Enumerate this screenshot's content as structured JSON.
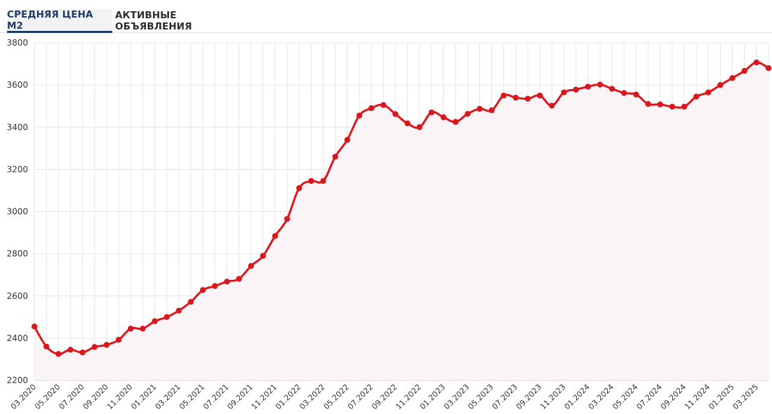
{
  "tabs": [
    {
      "label": "СРЕДНЯЯ ЦЕНА М2",
      "active": true
    },
    {
      "label": "АКТИВНЫЕ ОБЪЯВЛЕНИЯ",
      "active": false
    }
  ],
  "colors": {
    "line": "#d9181e",
    "area": "#fbf4f7",
    "grid": "#e6e6e6",
    "tab_active": "#1d3b66"
  },
  "chart_data": {
    "type": "line",
    "y_ticks": [
      2200,
      2400,
      2600,
      2800,
      3000,
      3200,
      3400,
      3600,
      3800
    ],
    "ylim": [
      2200,
      3800
    ],
    "x_tick_labels": [
      "03.2020",
      "05.2020",
      "07.2020",
      "09.2020",
      "11.2020",
      "01.2021",
      "03.2021",
      "05.2021",
      "07.2021",
      "09.2021",
      "11.2021",
      "01.2022",
      "03.2022",
      "05.2022",
      "07.2022",
      "09.2022",
      "11.2022",
      "01.2023",
      "03.2023",
      "05.2023",
      "07.2023",
      "09.2023",
      "11.2023",
      "01.2024",
      "03.2024",
      "05.2024",
      "07.2024",
      "09.2024",
      "11.2024",
      "01.2025",
      "03.2025"
    ],
    "grid": true,
    "series": [
      {
        "x": [
          "03.2020",
          "04.2020",
          "05.2020",
          "06.2020",
          "07.2020",
          "08.2020",
          "09.2020",
          "10.2020",
          "11.2020",
          "12.2020",
          "01.2021",
          "02.2021",
          "03.2021",
          "04.2021",
          "05.2021",
          "06.2021",
          "07.2021",
          "08.2021",
          "09.2021",
          "10.2021",
          "11.2021",
          "12.2021",
          "01.2022",
          "02.2022",
          "03.2022",
          "04.2022",
          "05.2022",
          "06.2022",
          "07.2022",
          "08.2022",
          "09.2022",
          "10.2022",
          "11.2022",
          "12.2022",
          "01.2023",
          "02.2023",
          "03.2023",
          "04.2023",
          "05.2023",
          "06.2023",
          "07.2023",
          "08.2023",
          "09.2023",
          "10.2023",
          "11.2023",
          "12.2023",
          "01.2024",
          "02.2024",
          "03.2024",
          "04.2024",
          "05.2024",
          "06.2024",
          "07.2024",
          "08.2024",
          "09.2024",
          "10.2024",
          "11.2024",
          "12.2024",
          "01.2025",
          "02.2025",
          "03.2025",
          "04.2025"
        ],
        "values": [
          2455,
          2360,
          2325,
          2345,
          2332,
          2358,
          2368,
          2392,
          2445,
          2445,
          2480,
          2500,
          2530,
          2572,
          2628,
          2647,
          2668,
          2681,
          2742,
          2790,
          2884,
          2965,
          3111,
          3145,
          3145,
          3260,
          3340,
          3455,
          3490,
          3505,
          3462,
          3418,
          3400,
          3470,
          3447,
          3425,
          3463,
          3487,
          3480,
          3550,
          3540,
          3535,
          3550,
          3502,
          3565,
          3578,
          3592,
          3602,
          3582,
          3562,
          3555,
          3510,
          3508,
          3497,
          3497,
          3545,
          3565,
          3600,
          3633,
          3667,
          3707,
          3680
        ]
      }
    ]
  }
}
